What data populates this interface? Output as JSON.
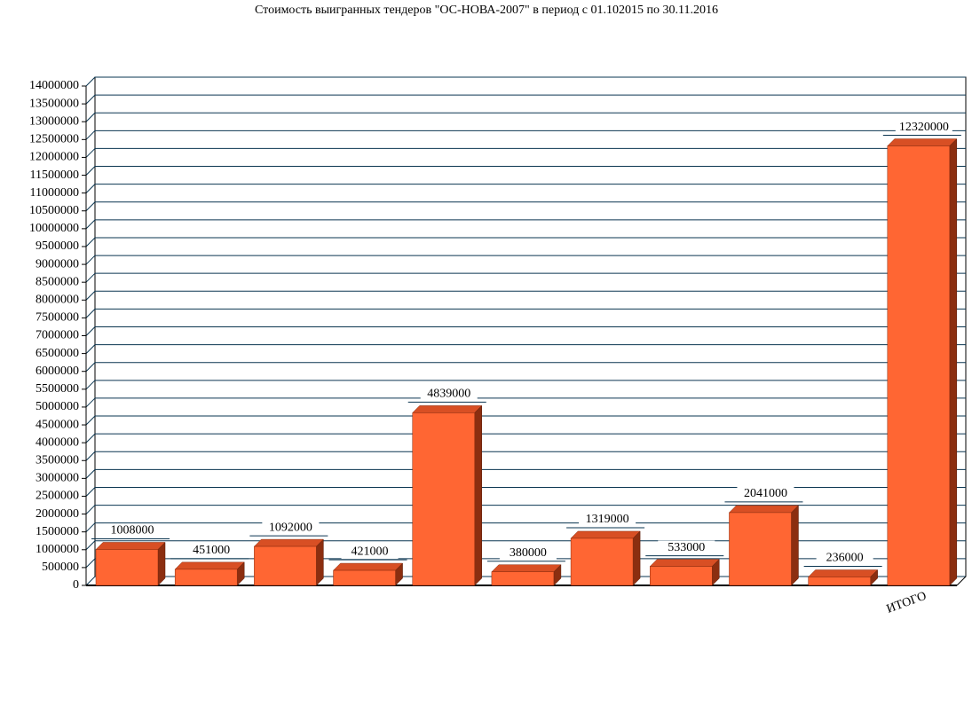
{
  "chart_data": {
    "type": "bar3d",
    "title": "Стоимость выигранных тендеров \"ОС-НОВА-2007\" в период с 01.102015 по 30.11.2016",
    "categories": [
      null,
      null,
      null,
      null,
      null,
      null,
      null,
      null,
      null,
      null,
      "ИТОГО"
    ],
    "values": [
      1008000,
      451000,
      1092000,
      421000,
      4839000,
      380000,
      1319000,
      533000,
      2041000,
      236000,
      12320000
    ],
    "color": "#ff6633",
    "ylim": [
      0,
      14000000
    ],
    "yticks": [
      0,
      500000,
      1000000,
      1500000,
      2000000,
      2500000,
      3000000,
      3500000,
      4000000,
      4500000,
      5000000,
      5500000,
      6000000,
      6500000,
      7000000,
      7500000,
      8000000,
      8500000,
      9000000,
      9500000,
      10000000,
      10500000,
      11000000,
      11500000,
      12000000,
      12500000,
      13000000,
      13500000,
      14000000
    ],
    "grid": true,
    "data_labels": true
  }
}
